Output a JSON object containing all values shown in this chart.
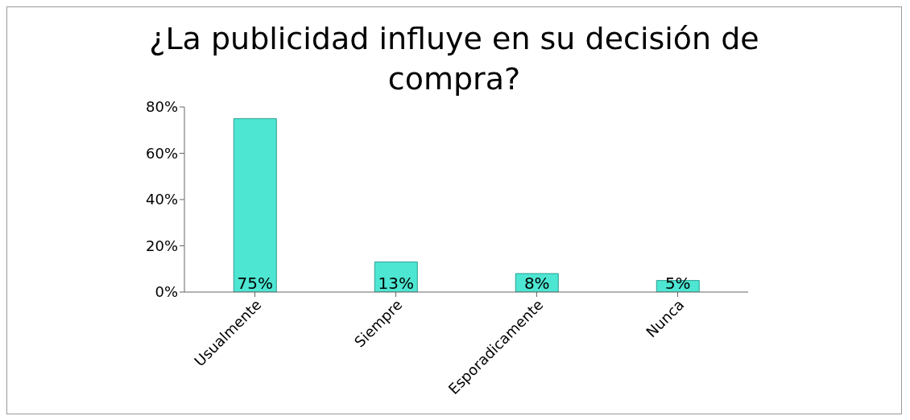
{
  "chart_data": {
    "type": "bar",
    "title": "¿La publicidad influye en su decisión de compra?",
    "categories": [
      "Usualmente",
      "Siempre",
      "Esporadicamente",
      "Nunca"
    ],
    "values": [
      75,
      13,
      8,
      5
    ],
    "value_labels": [
      "75%",
      "13%",
      "8%",
      "5%"
    ],
    "color": "#4de6d2",
    "ylim": [
      0,
      80
    ],
    "yticks": [
      {
        "value": 0,
        "label": "0%"
      },
      {
        "value": 20,
        "label": "20%"
      },
      {
        "value": 40,
        "label": "40%"
      },
      {
        "value": 60,
        "label": "60%"
      },
      {
        "value": 80,
        "label": "80%"
      }
    ],
    "grid": false
  }
}
